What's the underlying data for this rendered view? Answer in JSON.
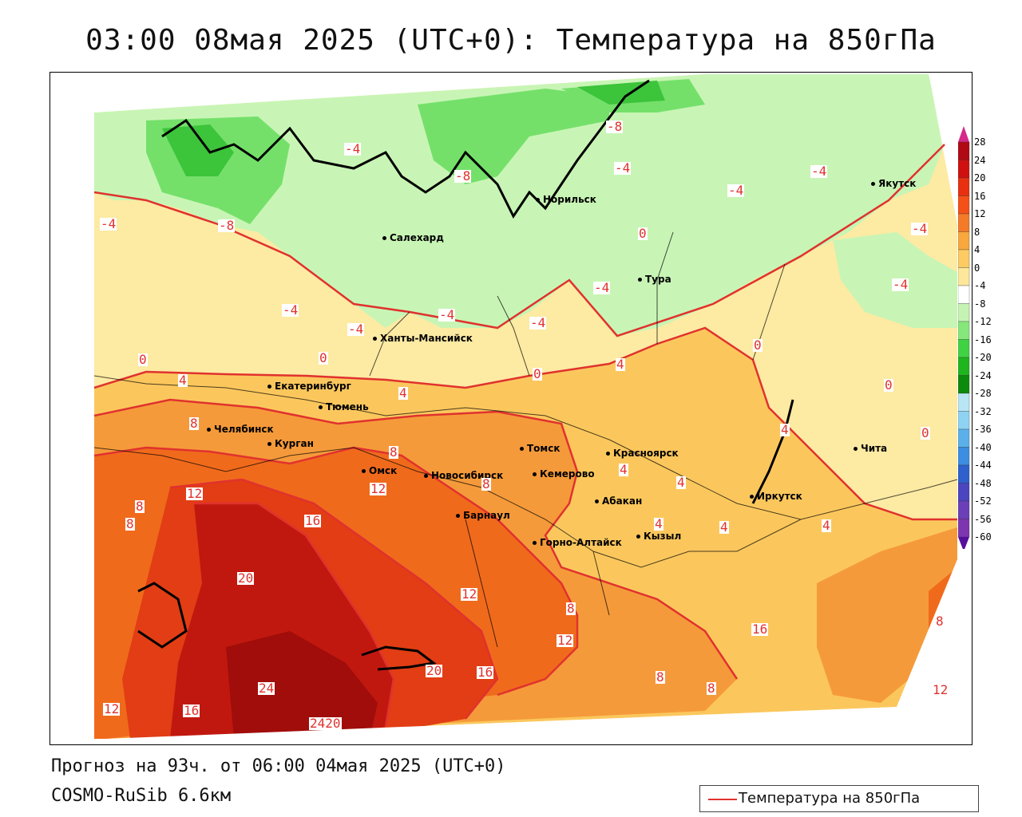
{
  "title": "03:00 08мая 2025 (UTC+0): Температура на 850гПа",
  "footer": {
    "forecast": "Прогноз на 93ч. от 06:00 04мая 2025 (UTC+0)",
    "model": "COSMO-RuSib 6.6км"
  },
  "legend": {
    "label": "Температура на 850гПа",
    "line_color": "#e0322e"
  },
  "colors": {
    "band_24": "#a00d0a",
    "band_20": "#c0180f",
    "band_16": "#e23d14",
    "band_12": "#f06a1c",
    "band_8": "#f59a3a",
    "band_4": "#fbc75d",
    "band_0": "#fdeaa3",
    "band_m4": "#c8f5b5",
    "band_m8": "#74e06a",
    "band_m12": "#3cc43a",
    "isoline": "#e0322e"
  },
  "scale": {
    "ticks": [
      "28",
      "24",
      "20",
      "16",
      "12",
      "8",
      "4",
      "0",
      "-4",
      "-8",
      "-12",
      "-16",
      "-20",
      "-24",
      "-28",
      "-32",
      "-36",
      "-40",
      "-44",
      "-48",
      "-52",
      "-56",
      "-60"
    ],
    "colors": [
      "#b00a14",
      "#d01010",
      "#e83010",
      "#f45018",
      "#f47a28",
      "#f8a83c",
      "#fccb62",
      "#fde79a",
      "#ffffff",
      "#c5f3b3",
      "#86e77a",
      "#3fd344",
      "#1eb51e",
      "#0c8a0c",
      "#b8e6f5",
      "#8fd3f3",
      "#5bb0ea",
      "#3d8de0",
      "#3060cc",
      "#4b45c0",
      "#6a3fb8",
      "#7d36b0",
      "#560f9a"
    ]
  },
  "cities": [
    {
      "name": "Норильск"
    },
    {
      "name": "Якутск"
    },
    {
      "name": "Салехард"
    },
    {
      "name": "Тура"
    },
    {
      "name": "Ханты-Мансийск"
    },
    {
      "name": "Екатеринбург"
    },
    {
      "name": "Тюмень"
    },
    {
      "name": "Челябинск"
    },
    {
      "name": "Курган"
    },
    {
      "name": "Омск"
    },
    {
      "name": "Томск"
    },
    {
      "name": "Новосибирск"
    },
    {
      "name": "Кемерово"
    },
    {
      "name": "Красноярск"
    },
    {
      "name": "Барнаул"
    },
    {
      "name": "Абакан"
    },
    {
      "name": "Иркутск"
    },
    {
      "name": "Чита"
    },
    {
      "name": "Кызыл"
    },
    {
      "name": "Горно-Алтайск"
    }
  ],
  "contour_labels": [
    "-8",
    "-8",
    "-8",
    "-4",
    "-4",
    "-4",
    "-4",
    "-4",
    "-4",
    "-4",
    "-4",
    "-4",
    "-4",
    "-4",
    "-4",
    "0",
    "0",
    "0",
    "0",
    "0",
    "0",
    "0",
    "4",
    "4",
    "4",
    "4",
    "4",
    "4",
    "4",
    "4",
    "4",
    "8",
    "8",
    "8",
    "8",
    "8",
    "8",
    "8",
    "8",
    "8",
    "12",
    "12",
    "12",
    "12",
    "12",
    "12",
    "16",
    "16",
    "16",
    "16",
    "20",
    "20",
    "24",
    "2420"
  ]
}
